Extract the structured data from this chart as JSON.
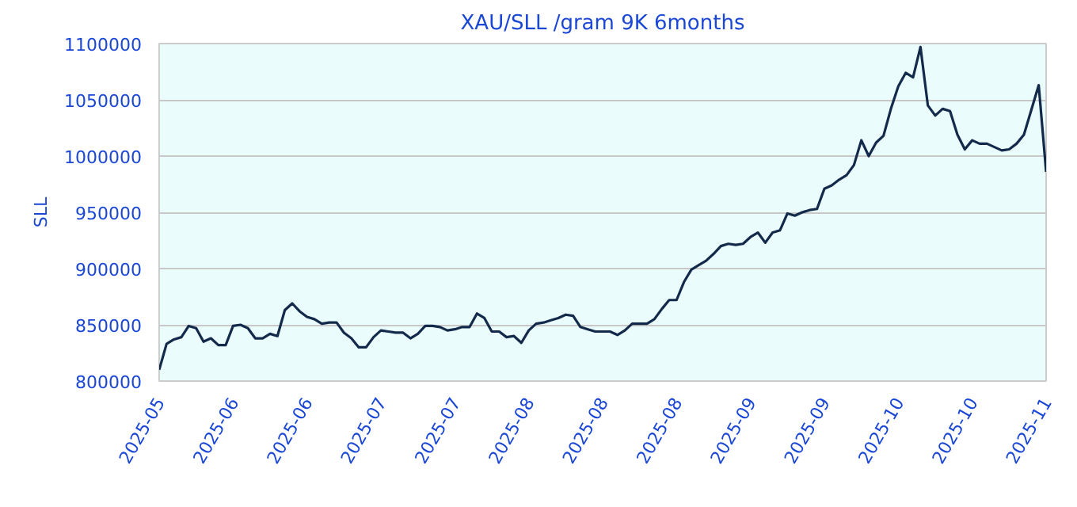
{
  "chart_data": {
    "type": "line",
    "title": "XAU/SLL /gram 9K 6months",
    "ylabel": "SLL",
    "categories": [
      "2025-05",
      null,
      null,
      null,
      null,
      null,
      null,
      null,
      null,
      null,
      "2025-06",
      null,
      null,
      null,
      null,
      null,
      null,
      null,
      null,
      null,
      "2025-06",
      null,
      null,
      null,
      null,
      null,
      null,
      null,
      null,
      null,
      "2025-07",
      null,
      null,
      null,
      null,
      null,
      null,
      null,
      null,
      null,
      "2025-07",
      null,
      null,
      null,
      null,
      null,
      null,
      null,
      null,
      null,
      "2025-08",
      null,
      null,
      null,
      null,
      null,
      null,
      null,
      null,
      null,
      "2025-08",
      null,
      null,
      null,
      null,
      null,
      null,
      null,
      null,
      null,
      "2025-08",
      null,
      null,
      null,
      null,
      null,
      null,
      null,
      null,
      null,
      "2025-09",
      null,
      null,
      null,
      null,
      null,
      null,
      null,
      null,
      null,
      "2025-09",
      null,
      null,
      null,
      null,
      null,
      null,
      null,
      null,
      null,
      "2025-10",
      null,
      null,
      null,
      null,
      null,
      null,
      null,
      null,
      null,
      "2025-10",
      null,
      null,
      null,
      null,
      null,
      null,
      null,
      null,
      null,
      "2025-11"
    ],
    "ylim": [
      800000,
      1100000
    ],
    "yticks": [
      800000,
      850000,
      900000,
      950000,
      1000000,
      1050000,
      1100000
    ],
    "grid": "y",
    "series": [
      {
        "color": "#132a4a",
        "values": [
          810000,
          833000,
          837000,
          839000,
          849000,
          847000,
          835000,
          838000,
          832000,
          832000,
          849000,
          850000,
          847000,
          838000,
          838000,
          842000,
          840000,
          863000,
          869000,
          862000,
          857000,
          855000,
          851000,
          852000,
          852000,
          843000,
          838000,
          830000,
          830000,
          839000,
          845000,
          844000,
          843000,
          843000,
          838000,
          842000,
          849000,
          849000,
          848000,
          845000,
          846000,
          848000,
          848000,
          860000,
          856000,
          844000,
          844000,
          839000,
          840000,
          834000,
          845000,
          851000,
          852000,
          854000,
          856000,
          859000,
          858000,
          848000,
          846000,
          844000,
          844000,
          844000,
          841000,
          845000,
          851000,
          851000,
          851000,
          855000,
          864000,
          872000,
          872000,
          888000,
          899000,
          903000,
          907000,
          913000,
          920000,
          922000,
          921000,
          922000,
          928000,
          932000,
          923000,
          932000,
          934000,
          949000,
          947000,
          950000,
          952000,
          953000,
          971000,
          974000,
          979000,
          983000,
          992000,
          1014000,
          1000000,
          1012000,
          1018000,
          1042000,
          1062000,
          1074000,
          1070000,
          1097000,
          1045000,
          1036000,
          1042000,
          1040000,
          1019000,
          1006000,
          1014000,
          1011000,
          1011000,
          1008000,
          1005000,
          1006000,
          1011000,
          1019000,
          1041000,
          1063000,
          986000
        ]
      }
    ]
  }
}
